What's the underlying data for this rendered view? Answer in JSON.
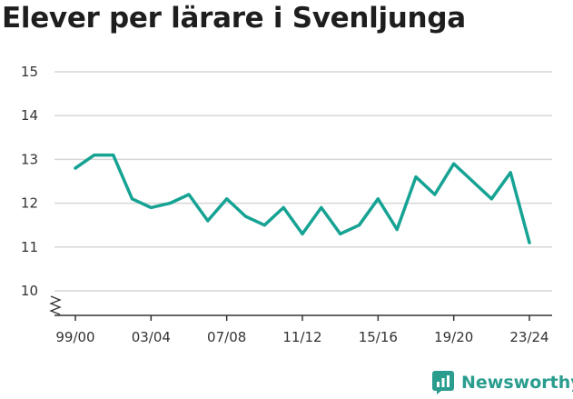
{
  "title": "Elever per lärare i Svenljunga",
  "brand": {
    "name": "Newsworthy",
    "logo_icon": "newsworthy-logo-icon",
    "color": "#2a9d8f"
  },
  "chart_data": {
    "type": "line",
    "title": "Elever per lärare i Svenljunga",
    "xlabel": "",
    "ylabel": "",
    "x_tick_labels": [
      "99/00",
      "03/04",
      "07/08",
      "11/12",
      "15/16",
      "19/20",
      "23/24"
    ],
    "y_ticks": [
      10,
      11,
      12,
      13,
      14,
      15
    ],
    "ylim": [
      9.5,
      15
    ],
    "y_axis_break": true,
    "grid": true,
    "line_color": "#16a394",
    "x": [
      "99/00",
      "00/01",
      "01/02",
      "02/03",
      "03/04",
      "04/05",
      "05/06",
      "06/07",
      "07/08",
      "08/09",
      "09/10",
      "10/11",
      "11/12",
      "12/13",
      "13/14",
      "14/15",
      "15/16",
      "16/17",
      "17/18",
      "18/19",
      "19/20",
      "20/21",
      "21/22",
      "22/23",
      "23/24"
    ],
    "series": [
      {
        "values": [
          12.8,
          13.1,
          13.1,
          12.1,
          11.9,
          12.0,
          12.2,
          11.6,
          12.1,
          11.7,
          11.5,
          11.9,
          11.3,
          11.9,
          11.3,
          11.5,
          12.1,
          11.4,
          12.6,
          12.2,
          12.9,
          12.5,
          12.1,
          12.7,
          11.1
        ]
      }
    ]
  }
}
